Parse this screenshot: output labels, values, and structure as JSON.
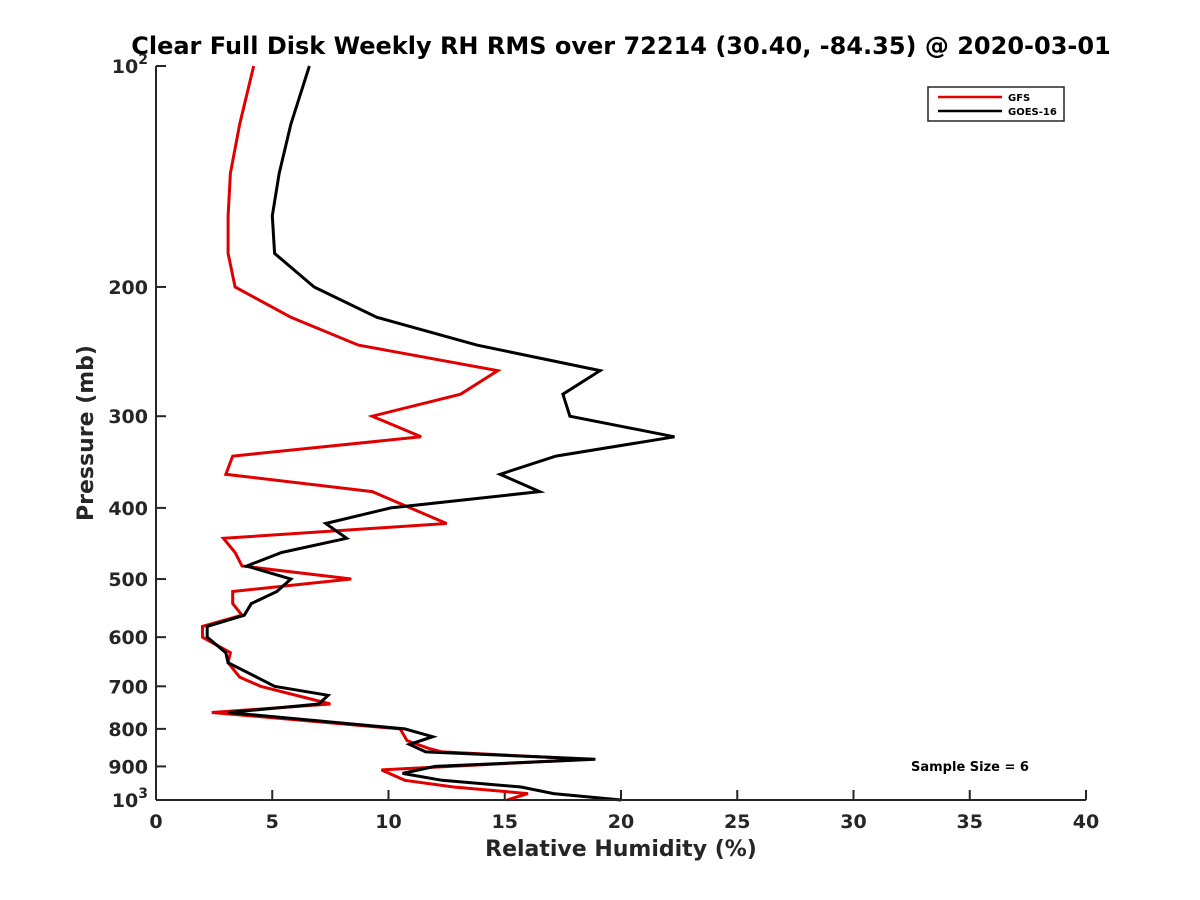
{
  "chart_data": {
    "type": "line",
    "title": "Clear Full Disk Weekly RH RMS over 72214 (30.40, -84.35) @ 2020-03-01",
    "xlabel": "Relative Humidity (%)",
    "ylabel": "Pressure (mb)",
    "xlim": [
      0,
      40
    ],
    "ylim": [
      100,
      1000
    ],
    "yscale": "log",
    "y_direction": "reverse",
    "x_ticks": [
      0,
      5,
      10,
      15,
      20,
      25,
      30,
      35,
      40
    ],
    "x_tick_labels": [
      "0",
      "5",
      "10",
      "15",
      "20",
      "25",
      "30",
      "35",
      "40"
    ],
    "y_ticks": [
      100,
      200,
      300,
      400,
      500,
      600,
      700,
      800,
      900,
      1000
    ],
    "y_tick_labels": [
      {
        "base": "10",
        "exp": "2"
      },
      {
        "base": "200",
        "exp": ""
      },
      {
        "base": "300",
        "exp": ""
      },
      {
        "base": "400",
        "exp": ""
      },
      {
        "base": "500",
        "exp": ""
      },
      {
        "base": "600",
        "exp": ""
      },
      {
        "base": "700",
        "exp": ""
      },
      {
        "base": "800",
        "exp": ""
      },
      {
        "base": "900",
        "exp": ""
      },
      {
        "base": "10",
        "exp": "3"
      }
    ],
    "legend_position": "top-right",
    "annotation": "Sample Size = 6",
    "series": [
      {
        "name": "GFS",
        "color": "#e00000",
        "points": [
          [
            4.2,
            100
          ],
          [
            3.6,
            120
          ],
          [
            3.2,
            140
          ],
          [
            3.1,
            160
          ],
          [
            3.1,
            180
          ],
          [
            3.4,
            200
          ],
          [
            5.8,
            220
          ],
          [
            8.7,
            240
          ],
          [
            14.7,
            260
          ],
          [
            13.1,
            280
          ],
          [
            9.3,
            300
          ],
          [
            11.4,
            320
          ],
          [
            3.3,
            340
          ],
          [
            3.0,
            360
          ],
          [
            9.3,
            380
          ],
          [
            12.5,
            420
          ],
          [
            2.9,
            440
          ],
          [
            3.4,
            460
          ],
          [
            3.7,
            480
          ],
          [
            8.4,
            500
          ],
          [
            3.3,
            520
          ],
          [
            3.3,
            540
          ],
          [
            3.7,
            560
          ],
          [
            2.0,
            580
          ],
          [
            2.0,
            600
          ],
          [
            3.2,
            630
          ],
          [
            3.1,
            650
          ],
          [
            3.6,
            680
          ],
          [
            4.5,
            700
          ],
          [
            7.5,
            740
          ],
          [
            2.4,
            760
          ],
          [
            10.5,
            800
          ],
          [
            10.8,
            830
          ],
          [
            11.7,
            850
          ],
          [
            12.3,
            860
          ],
          [
            18.6,
            880
          ],
          [
            9.7,
            910
          ],
          [
            10.7,
            940
          ],
          [
            12.8,
            960
          ],
          [
            16.0,
            980
          ],
          [
            15.1,
            1000
          ]
        ]
      },
      {
        "name": "GOES-16",
        "color": "#000000",
        "points": [
          [
            6.6,
            100
          ],
          [
            5.8,
            120
          ],
          [
            5.3,
            140
          ],
          [
            5.0,
            160
          ],
          [
            5.1,
            180
          ],
          [
            6.8,
            200
          ],
          [
            9.5,
            220
          ],
          [
            13.8,
            240
          ],
          [
            19.1,
            260
          ],
          [
            17.5,
            280
          ],
          [
            17.8,
            300
          ],
          [
            22.3,
            320
          ],
          [
            17.2,
            340
          ],
          [
            14.8,
            360
          ],
          [
            16.5,
            380
          ],
          [
            10.1,
            400
          ],
          [
            7.3,
            420
          ],
          [
            8.2,
            440
          ],
          [
            5.4,
            460
          ],
          [
            3.9,
            480
          ],
          [
            5.8,
            500
          ],
          [
            5.2,
            520
          ],
          [
            4.1,
            540
          ],
          [
            3.8,
            560
          ],
          [
            2.2,
            580
          ],
          [
            2.2,
            600
          ],
          [
            3.0,
            630
          ],
          [
            3.1,
            650
          ],
          [
            5.1,
            700
          ],
          [
            7.4,
            720
          ],
          [
            7.0,
            740
          ],
          [
            3.1,
            760
          ],
          [
            10.7,
            800
          ],
          [
            11.9,
            820
          ],
          [
            10.9,
            840
          ],
          [
            11.6,
            860
          ],
          [
            18.9,
            880
          ],
          [
            12.0,
            900
          ],
          [
            10.6,
            920
          ],
          [
            12.3,
            940
          ],
          [
            15.7,
            960
          ],
          [
            17.1,
            980
          ],
          [
            20.0,
            1000
          ]
        ]
      }
    ]
  }
}
